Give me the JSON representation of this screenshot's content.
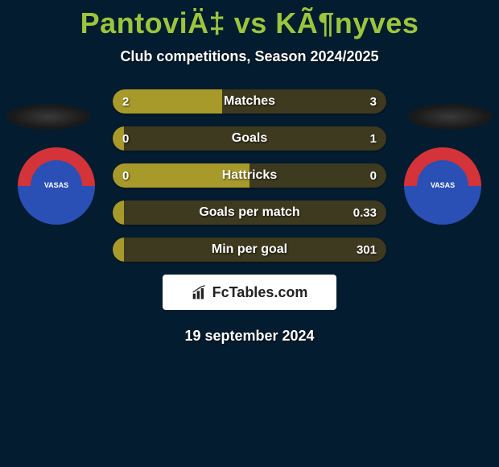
{
  "title": "PantoviÄ‡ vs KÃ¶nyves",
  "subtitle": "Club competitions, Season 2024/2025",
  "date": "19 september 2024",
  "logo_text": "FcTables.com",
  "colors": {
    "background": "#031c2f",
    "title_color": "#9bc53d",
    "text_color": "#ffffff",
    "player1_bar": "#a89a2a",
    "player2_bar": "#3e3a1f",
    "logo_bg": "#ffffff",
    "logo_text": "#222222",
    "badge_top": "#d4333a",
    "badge_bottom": "#2a4fb5"
  },
  "stats": [
    {
      "label": "Matches",
      "p1": "2",
      "p2": "3",
      "p1_pct": 40,
      "p2_pct": 60
    },
    {
      "label": "Goals",
      "p1": "0",
      "p2": "1",
      "p1_pct": 4,
      "p2_pct": 96
    },
    {
      "label": "Hattricks",
      "p1": "0",
      "p2": "0",
      "p1_pct": 50,
      "p2_pct": 50
    },
    {
      "label": "Goals per match",
      "p1": "",
      "p2": "0.33",
      "p1_pct": 4,
      "p2_pct": 96
    },
    {
      "label": "Min per goal",
      "p1": "",
      "p2": "301",
      "p1_pct": 4,
      "p2_pct": 96
    }
  ],
  "team_badge_text": "VASAS"
}
